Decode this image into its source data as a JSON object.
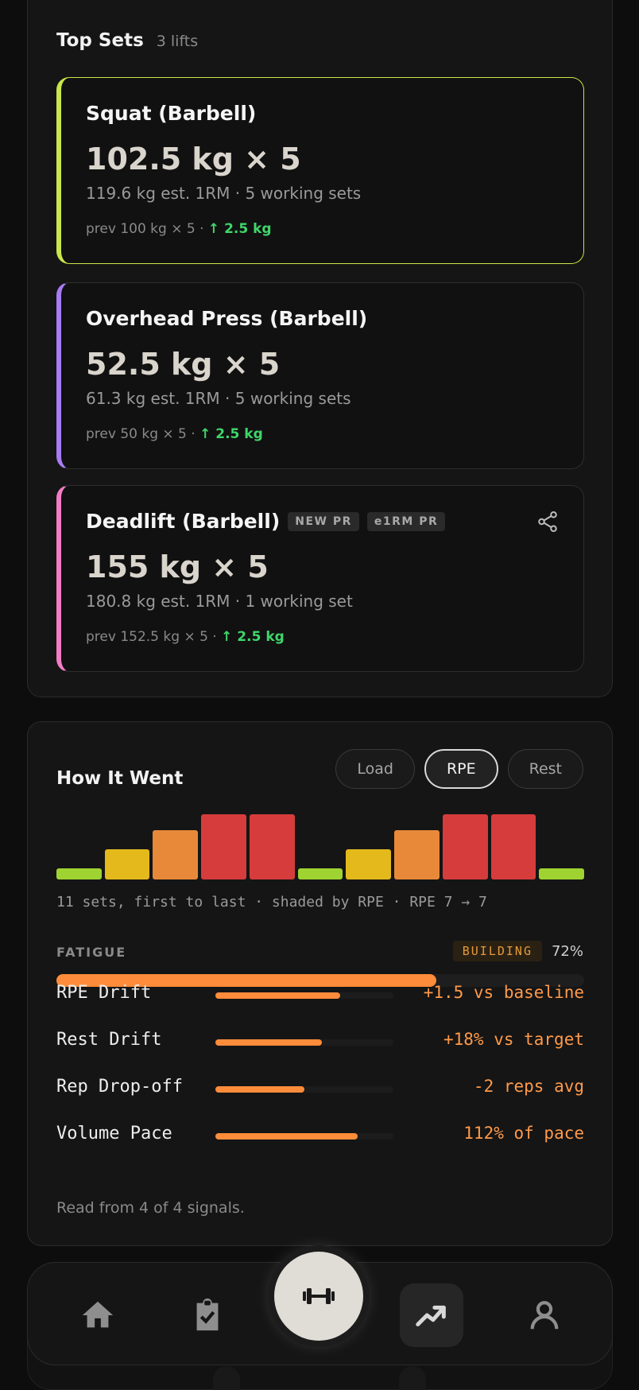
{
  "top_sets": {
    "title": "Top Sets",
    "subtitle": "3 lifts",
    "lifts": [
      {
        "name": "Squat (Barbell)",
        "weight": "102.5 kg × 5",
        "est": "119.6 kg est. 1RM · 5 working sets",
        "prev": "prev 100 kg × 5 · ",
        "gain": "↑ 2.5 kg",
        "accent": "#c9e64a"
      },
      {
        "name": "Overhead Press (Barbell)",
        "weight": "52.5 kg × 5",
        "est": "61.3 kg est. 1RM · 5 working sets",
        "prev": "prev 50 kg × 5 · ",
        "gain": "↑ 2.5 kg",
        "accent": "#a77cf3"
      },
      {
        "name": "Deadlift (Barbell)",
        "badges": [
          "NEW PR",
          "e1RM PR"
        ],
        "weight": "155 kg × 5",
        "est": "180.8 kg est. 1RM · 1 working set",
        "prev": "prev 152.5 kg × 5 · ",
        "gain": "↑ 2.5 kg",
        "accent": "#f37cc4",
        "action_icon": "share-icon"
      }
    ]
  },
  "how_it_went": {
    "title": "How It Went",
    "tabs": [
      "Load",
      "RPE",
      "Rest"
    ],
    "active_tab": "RPE",
    "set_rpe": [
      7,
      8,
      9,
      10,
      10,
      7,
      8,
      9,
      10,
      10,
      7
    ],
    "rpe_colors": {
      "7": "#9fd332",
      "8": "#e3b91c",
      "9": "#e8893a",
      "10": "#d63c3c"
    },
    "caption": "11 sets, first to last · shaded by RPE · RPE 7 → 7",
    "fatigue": {
      "label": "FATIGUE",
      "status": "BUILDING",
      "percent_label": "72%",
      "value": 0.72
    },
    "signals": [
      {
        "name": "RPE Drift",
        "value": "+1.5 vs baseline",
        "level": 0.7
      },
      {
        "name": "Rest Drift",
        "value": "+18% vs target",
        "level": 0.6
      },
      {
        "name": "Rep Drop-off",
        "value": "-2 reps avg",
        "level": 0.5
      },
      {
        "name": "Volume Pace",
        "value": "112% of pace",
        "level": 0.8
      }
    ],
    "note": "Read from 4 of 4 signals."
  },
  "nav": {
    "items": [
      "home-icon",
      "clipboard-check-icon",
      "dumbbell-icon",
      "trending-up-icon",
      "profile-icon"
    ],
    "active": "trending-up-icon"
  }
}
